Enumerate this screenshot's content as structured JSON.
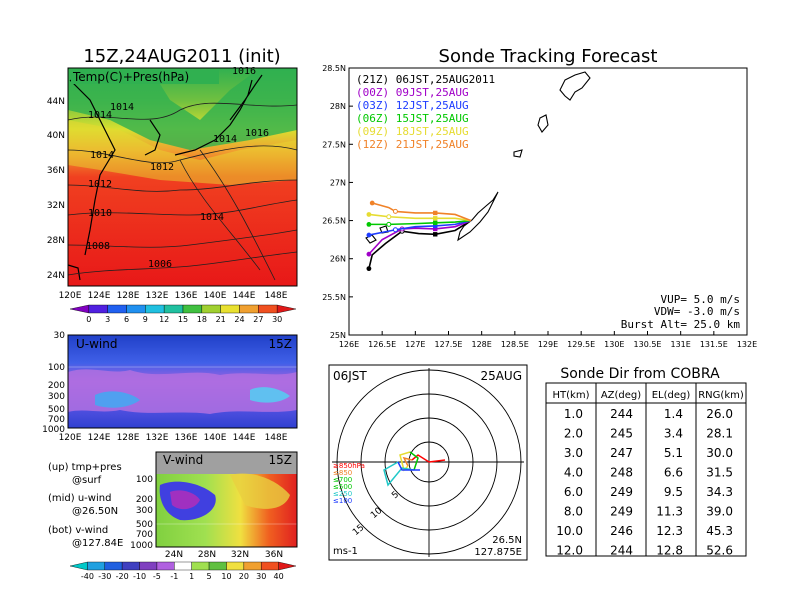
{
  "left_title": "15Z,24AUG2011 (init)",
  "right_title": "Sonde Tracking Forecast",
  "colors": {
    "z21": "#000000",
    "z00": "#a000c8",
    "z03": "#1e3cff",
    "z06": "#00c800",
    "z09": "#e6dc32",
    "z12": "#f08228"
  },
  "temp_panel": {
    "label": "Temp(C)+Pres(hPa)",
    "lat_labels": [
      "44N",
      "40N",
      "36N",
      "32N",
      "28N",
      "24N"
    ],
    "lon_labels": [
      "120E",
      "124E",
      "128E",
      "132E",
      "136E",
      "140E",
      "144E",
      "148E"
    ],
    "isobars": [
      "1016",
      "1014",
      "1014",
      "1014",
      "1014",
      "1016",
      "1012",
      "1012",
      "1010",
      "1014",
      "1008",
      "1006"
    ],
    "colorbar": [
      "0",
      "3",
      "6",
      "9",
      "12",
      "15",
      "18",
      "21",
      "24",
      "27",
      "30"
    ]
  },
  "u_panel": {
    "label": "U-wind",
    "time": "15Z",
    "levels": [
      "30",
      "100",
      "200",
      "300",
      "500",
      "700",
      "1000"
    ],
    "lon_labels": [
      "120E",
      "124E",
      "128E",
      "132E",
      "136E",
      "140E",
      "144E",
      "148E"
    ]
  },
  "v_panel": {
    "label": "V-wind",
    "time": "15Z",
    "levels": [
      "100",
      "200",
      "300",
      "500",
      "700",
      "1000"
    ],
    "lat_labels": [
      "24N",
      "28N",
      "32N",
      "36N"
    ],
    "colorbar": [
      "-40",
      "-30",
      "-20",
      "-10",
      "-5",
      "-1",
      "1",
      "5",
      "10",
      "20",
      "30",
      "40"
    ]
  },
  "notes": [
    {
      "head": "(up) tmp+pres",
      "sub": "@surf"
    },
    {
      "head": "(mid) u-wind",
      "sub": "@26.50N"
    },
    {
      "head": "(bot) v-wind",
      "sub": "@127.84E"
    }
  ],
  "tracking": {
    "legend": [
      {
        "key": "z21",
        "text": "(21Z) 06JST,25AUG2011"
      },
      {
        "key": "z00",
        "text": "(00Z) 09JST,25AUG"
      },
      {
        "key": "z03",
        "text": "(03Z) 12JST,25AUG"
      },
      {
        "key": "z06",
        "text": "(06Z) 15JST,25AUG"
      },
      {
        "key": "z09",
        "text": "(09Z) 18JST,25AUG"
      },
      {
        "key": "z12",
        "text": "(12Z) 21JST,25AUG"
      }
    ],
    "vup": "VUP= 5.0 m/s",
    "vdw": "VDW= -3.0 m/s",
    "burst": "Burst Alt= 25.0 km"
  },
  "polar": {
    "left_label": "06JST",
    "right_label": "25AUG",
    "unit": "ms-1",
    "position_lat": "26.5N",
    "position_lon": "127.875E",
    "levels": [
      "≥850hPa",
      "≤850",
      "≤700",
      "≤500",
      "≤250",
      "≤100"
    ],
    "rings": [
      "5",
      "10",
      "15"
    ]
  },
  "chart_data": [
    {
      "type": "line",
      "title": "Sonde Tracking Forecast",
      "xlim": [
        126,
        132
      ],
      "ylim": [
        25,
        28.5
      ],
      "x_ticks": [
        126,
        126.5,
        127,
        127.5,
        128,
        128.5,
        129,
        129.5,
        130,
        130.5,
        131,
        131.5,
        132
      ],
      "x_tick_labels": [
        "126E",
        "126.5E",
        "127E",
        "127.5E",
        "128E",
        "128.5E",
        "129E",
        "129.5E",
        "130E",
        "130.5E",
        "131E",
        "131.5E",
        "132E"
      ],
      "y_ticks": [
        25,
        25.5,
        26,
        26.5,
        27,
        27.5,
        28,
        28.5
      ],
      "y_tick_labels": [
        "25N",
        "25.5N",
        "26N",
        "26.5N",
        "27N",
        "27.5N",
        "28N",
        "28.5N"
      ],
      "series": [
        {
          "key": "z21",
          "x": [
            127.84,
            127.6,
            127.3,
            127.05,
            126.8,
            126.55,
            126.35,
            126.3
          ],
          "y": [
            26.5,
            26.37,
            26.32,
            26.33,
            26.36,
            26.2,
            26.05,
            25.87
          ]
        },
        {
          "key": "z00",
          "x": [
            127.84,
            127.6,
            127.3,
            127.0,
            126.8,
            126.5,
            126.3
          ],
          "y": [
            26.5,
            26.42,
            26.39,
            26.4,
            26.39,
            26.25,
            26.06
          ]
        },
        {
          "key": "z03",
          "x": [
            127.84,
            127.6,
            127.3,
            127.0,
            126.7,
            126.3
          ],
          "y": [
            26.5,
            26.45,
            26.43,
            26.42,
            26.38,
            26.31
          ]
        },
        {
          "key": "z06",
          "x": [
            127.84,
            127.6,
            127.3,
            127.0,
            126.6,
            126.3
          ],
          "y": [
            26.5,
            26.48,
            26.47,
            26.46,
            26.45,
            26.45
          ]
        },
        {
          "key": "z09",
          "x": [
            127.84,
            127.6,
            127.3,
            127.0,
            126.6,
            126.3
          ],
          "y": [
            26.5,
            26.53,
            26.53,
            26.53,
            26.55,
            26.58
          ]
        },
        {
          "key": "z12",
          "x": [
            127.84,
            127.6,
            127.3,
            127.0,
            126.7,
            126.6,
            126.35
          ],
          "y": [
            26.5,
            26.58,
            26.6,
            26.6,
            26.62,
            26.67,
            26.73
          ]
        }
      ]
    },
    {
      "type": "table",
      "title": "Sonde Dir from COBRA",
      "columns": [
        "HT(km)",
        "AZ(deg)",
        "EL(deg)",
        "RNG(km)"
      ],
      "rows": [
        [
          "1.0",
          "244",
          "1.4",
          "26.0"
        ],
        [
          "2.0",
          "245",
          "3.4",
          "28.1"
        ],
        [
          "3.0",
          "247",
          "5.1",
          "30.0"
        ],
        [
          "4.0",
          "248",
          "6.6",
          "31.5"
        ],
        [
          "6.0",
          "249",
          "9.5",
          "34.3"
        ],
        [
          "8.0",
          "249",
          "11.3",
          "39.0"
        ],
        [
          "10.0",
          "246",
          "12.3",
          "45.3"
        ],
        [
          "12.0",
          "244",
          "12.8",
          "52.6"
        ]
      ]
    }
  ]
}
